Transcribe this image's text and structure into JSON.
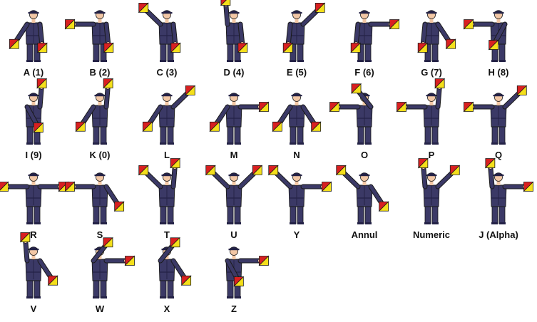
{
  "colors": {
    "uniform": "#3b3966",
    "uniform_dark": "#242246",
    "skin": "#f2c7a5",
    "flag_red": "#d92020",
    "flag_yellow": "#f4df1a",
    "outline": "#1a1a1a"
  },
  "signals": [
    {
      "label": "A (1)",
      "right": "low-down",
      "left": "down"
    },
    {
      "label": "B (2)",
      "right": "out",
      "left": "down"
    },
    {
      "label": "C (3)",
      "right": "up-out",
      "left": "down"
    },
    {
      "label": "D (4)",
      "right": "up",
      "left": "down"
    },
    {
      "label": "E (5)",
      "right": "down",
      "left": "up-out"
    },
    {
      "label": "F (6)",
      "right": "down",
      "left": "out"
    },
    {
      "label": "G (7)",
      "right": "down",
      "left": "low-down"
    },
    {
      "label": "H (8)",
      "right": "out",
      "left": "across-low"
    },
    {
      "label": "I (9)",
      "right": "across-low",
      "left": "up"
    },
    {
      "label": "K (0)",
      "right": "low-down",
      "left": "up"
    },
    {
      "label": "L",
      "right": "low-down",
      "left": "up-out"
    },
    {
      "label": "M",
      "right": "low-down",
      "left": "out"
    },
    {
      "label": "N",
      "right": "low-down",
      "left": "low-down"
    },
    {
      "label": "O",
      "right": "out",
      "left": "across-high"
    },
    {
      "label": "P",
      "right": "out",
      "left": "up"
    },
    {
      "label": "Q",
      "right": "out",
      "left": "up-out"
    },
    {
      "label": "R",
      "right": "out",
      "left": "out"
    },
    {
      "label": "S",
      "right": "out",
      "left": "low-down"
    },
    {
      "label": "T",
      "right": "up-out",
      "left": "up"
    },
    {
      "label": "U",
      "right": "up-out",
      "left": "up-out"
    },
    {
      "label": "Y",
      "right": "up-out",
      "left": "out"
    },
    {
      "label": "Annul",
      "right": "up-out",
      "left": "low-down"
    },
    {
      "label": "Numeric",
      "right": "up",
      "left": "up-out"
    },
    {
      "label": "J (Alpha)",
      "right": "up",
      "left": "out"
    },
    {
      "label": "V",
      "right": "up",
      "left": "low-down"
    },
    {
      "label": "W",
      "right": "across-high",
      "left": "out"
    },
    {
      "label": "X",
      "right": "across-high",
      "left": "low-down"
    },
    {
      "label": "Z",
      "right": "across-low",
      "left": "out"
    }
  ]
}
